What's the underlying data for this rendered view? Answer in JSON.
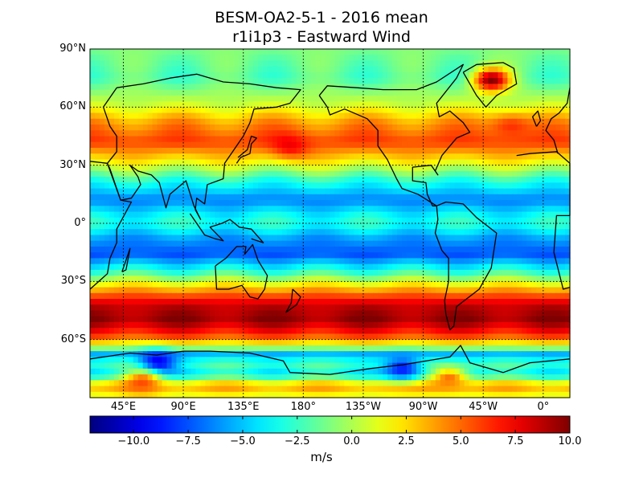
{
  "title": {
    "line1": "BESM-OA2-5-1 - 2016 mean",
    "line2": "r1i1p3 - Eastward Wind"
  },
  "map": {
    "type": "heatmap",
    "projection": "cylindrical",
    "variable": "Eastward Wind",
    "lat_range": [
      -90,
      90
    ],
    "lon_range": [
      20,
      380
    ],
    "lat_ticks": [
      {
        "value": 90,
        "label": "90°N"
      },
      {
        "value": 60,
        "label": "60°N"
      },
      {
        "value": 30,
        "label": "30°N"
      },
      {
        "value": 0,
        "label": "0°"
      },
      {
        "value": -30,
        "label": "30°S"
      },
      {
        "value": -60,
        "label": "60°S"
      }
    ],
    "lon_ticks": [
      {
        "value": 45,
        "label": "45°E"
      },
      {
        "value": 90,
        "label": "90°E"
      },
      {
        "value": 135,
        "label": "135°E"
      },
      {
        "value": 180,
        "label": "180°"
      },
      {
        "value": 225,
        "label": "135°W"
      },
      {
        "value": 270,
        "label": "90°W"
      },
      {
        "value": 315,
        "label": "45°W"
      },
      {
        "value": 360,
        "label": "0°"
      }
    ],
    "grid": "dotted",
    "colormap": "jet",
    "zonal_profile": [
      {
        "lat": 90,
        "value": -1.0
      },
      {
        "lat": 75,
        "value": -2.0
      },
      {
        "lat": 62,
        "value": 0.5
      },
      {
        "lat": 52,
        "value": 4.0
      },
      {
        "lat": 42,
        "value": 6.0
      },
      {
        "lat": 32,
        "value": 2.0
      },
      {
        "lat": 22,
        "value": -3.0
      },
      {
        "lat": 12,
        "value": -6.5
      },
      {
        "lat": 5,
        "value": -4.0
      },
      {
        "lat": 0,
        "value": -3.0
      },
      {
        "lat": -8,
        "value": -6.0
      },
      {
        "lat": -16,
        "value": -7.5
      },
      {
        "lat": -26,
        "value": -2.0
      },
      {
        "lat": -34,
        "value": 3.5
      },
      {
        "lat": -42,
        "value": 8.5
      },
      {
        "lat": -50,
        "value": 9.5
      },
      {
        "lat": -58,
        "value": 6.0
      },
      {
        "lat": -64,
        "value": 0.0
      },
      {
        "lat": -68,
        "value": -6.0
      },
      {
        "lat": -72,
        "value": -2.0
      },
      {
        "lat": -78,
        "value": -4.0
      },
      {
        "lat": -84,
        "value": 4.0
      },
      {
        "lat": -90,
        "value": 1.0
      }
    ],
    "regional_features": [
      {
        "name": "greenland-plateau",
        "lon": 321,
        "lat": 74,
        "value": 9.5
      },
      {
        "name": "north-atlantic-jet",
        "lon": 335,
        "lat": 50,
        "value": 7.0
      },
      {
        "name": "north-pacific-jet",
        "lon": 170,
        "lat": 40,
        "value": 7.5
      },
      {
        "name": "antarctic-coast-east",
        "lon": 70,
        "lat": -72,
        "value": -10.0
      },
      {
        "name": "antarctic-coast-west",
        "lon": 255,
        "lat": -75,
        "value": -9.5
      },
      {
        "name": "antarctic-interior-east",
        "lon": 60,
        "lat": -82,
        "value": 5.0
      },
      {
        "name": "antarctic-interior-west",
        "lon": 290,
        "lat": -80,
        "value": 5.5
      }
    ]
  },
  "colorbar": {
    "min": -12.0,
    "max": 10.0,
    "ticks": [
      {
        "value": -10.0,
        "label": "−10.0"
      },
      {
        "value": -7.5,
        "label": "−7.5"
      },
      {
        "value": -5.0,
        "label": "−5.0"
      },
      {
        "value": -2.5,
        "label": "−2.5"
      },
      {
        "value": 0.0,
        "label": "0.0"
      },
      {
        "value": 2.5,
        "label": "2.5"
      },
      {
        "value": 5.0,
        "label": "5.0"
      },
      {
        "value": 7.5,
        "label": "7.5"
      },
      {
        "value": 10.0,
        "label": "10.0"
      }
    ],
    "unit": "m/s"
  },
  "colors": {
    "jet_stops": [
      "#00007f",
      "#0000ff",
      "#007fff",
      "#00ffff",
      "#7fff7f",
      "#ffff00",
      "#ff7f00",
      "#ff0000",
      "#7f0000"
    ]
  }
}
